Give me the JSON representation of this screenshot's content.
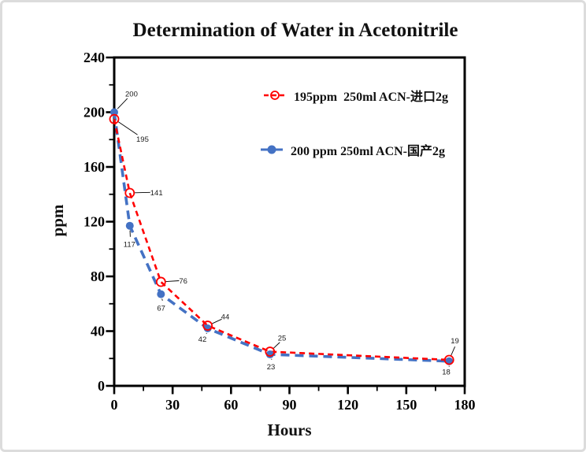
{
  "page": {
    "background": "#ffffff",
    "border_color": "#dcdcdc"
  },
  "colors": {
    "red_series": "#FF0000",
    "blue_series": "#4472C4",
    "axis": "#000000",
    "data_label": "#1a1a1a",
    "leader_line": "#000000"
  },
  "chart_data": {
    "type": "line",
    "title": "Determination of Water in Acetonitrile",
    "xlabel": "Hours",
    "ylabel": "ppm",
    "xlim": [
      0,
      180
    ],
    "ylim": [
      0,
      240
    ],
    "x_ticks": [
      0,
      30,
      60,
      90,
      120,
      150,
      180
    ],
    "y_ticks": [
      0,
      40,
      80,
      120,
      160,
      200,
      240
    ],
    "x_minor_step": 15,
    "y_minor_step": 20,
    "grid": false,
    "legend_position": "inside-top-right",
    "x_shared": [
      0,
      8,
      24,
      48,
      80,
      172
    ],
    "series": [
      {
        "name": "195ppm  250ml ACN-进口2g",
        "color_key": "red_series",
        "marker": "open-circle",
        "line_style": "dashed-short",
        "values": [
          195,
          141,
          76,
          44,
          25,
          19
        ],
        "point_labels": [
          "195",
          "141",
          "76",
          "44",
          "25",
          "19"
        ],
        "label_offsets": [
          [
            28,
            29
          ],
          [
            26,
            3
          ],
          [
            23,
            2
          ],
          [
            17,
            -8
          ],
          [
            10,
            -14
          ],
          [
            2,
            -21
          ]
        ]
      },
      {
        "name": "200 ppm 250ml ACN-国产2g",
        "color_key": "blue_series",
        "marker": "filled-circle",
        "line_style": "dashed-long",
        "values": [
          200,
          117,
          67,
          42,
          23,
          18
        ],
        "point_labels": [
          "200",
          "117",
          "67",
          "42",
          "23",
          "18"
        ],
        "label_offsets": [
          [
            14,
            -20
          ],
          [
            -8,
            27
          ],
          [
            -5,
            21
          ],
          [
            -12,
            17
          ],
          [
            -4,
            19
          ],
          [
            -9,
            17
          ]
        ]
      }
    ]
  }
}
